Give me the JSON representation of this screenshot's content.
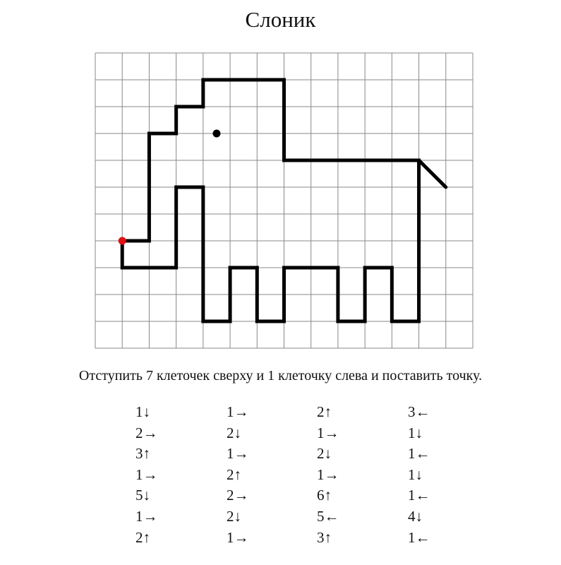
{
  "title": "Слоник",
  "grid": {
    "columns": 14,
    "rows": 11,
    "start_from_top": 7,
    "start_from_left": 1,
    "start_color": "#e01010",
    "line_color": "#000000",
    "grid_color": "#888888"
  },
  "instruction": "Отступить 7 клеточек сверху и 1 клеточку слева и поставить точку.",
  "steps": [
    [
      "1↓",
      "2→",
      "3↑",
      "1→",
      "5↓",
      "1→",
      "2↑"
    ],
    [
      "1→",
      "2↓",
      "1→",
      "2↑",
      "2→",
      "2↓",
      "1→"
    ],
    [
      "2↑",
      "1→",
      "2↓",
      "1→",
      "6↑",
      "5←",
      "3↑"
    ],
    [
      "3←",
      "1↓",
      "1←",
      "1↓",
      "1←",
      "4↓",
      "1←"
    ]
  ]
}
